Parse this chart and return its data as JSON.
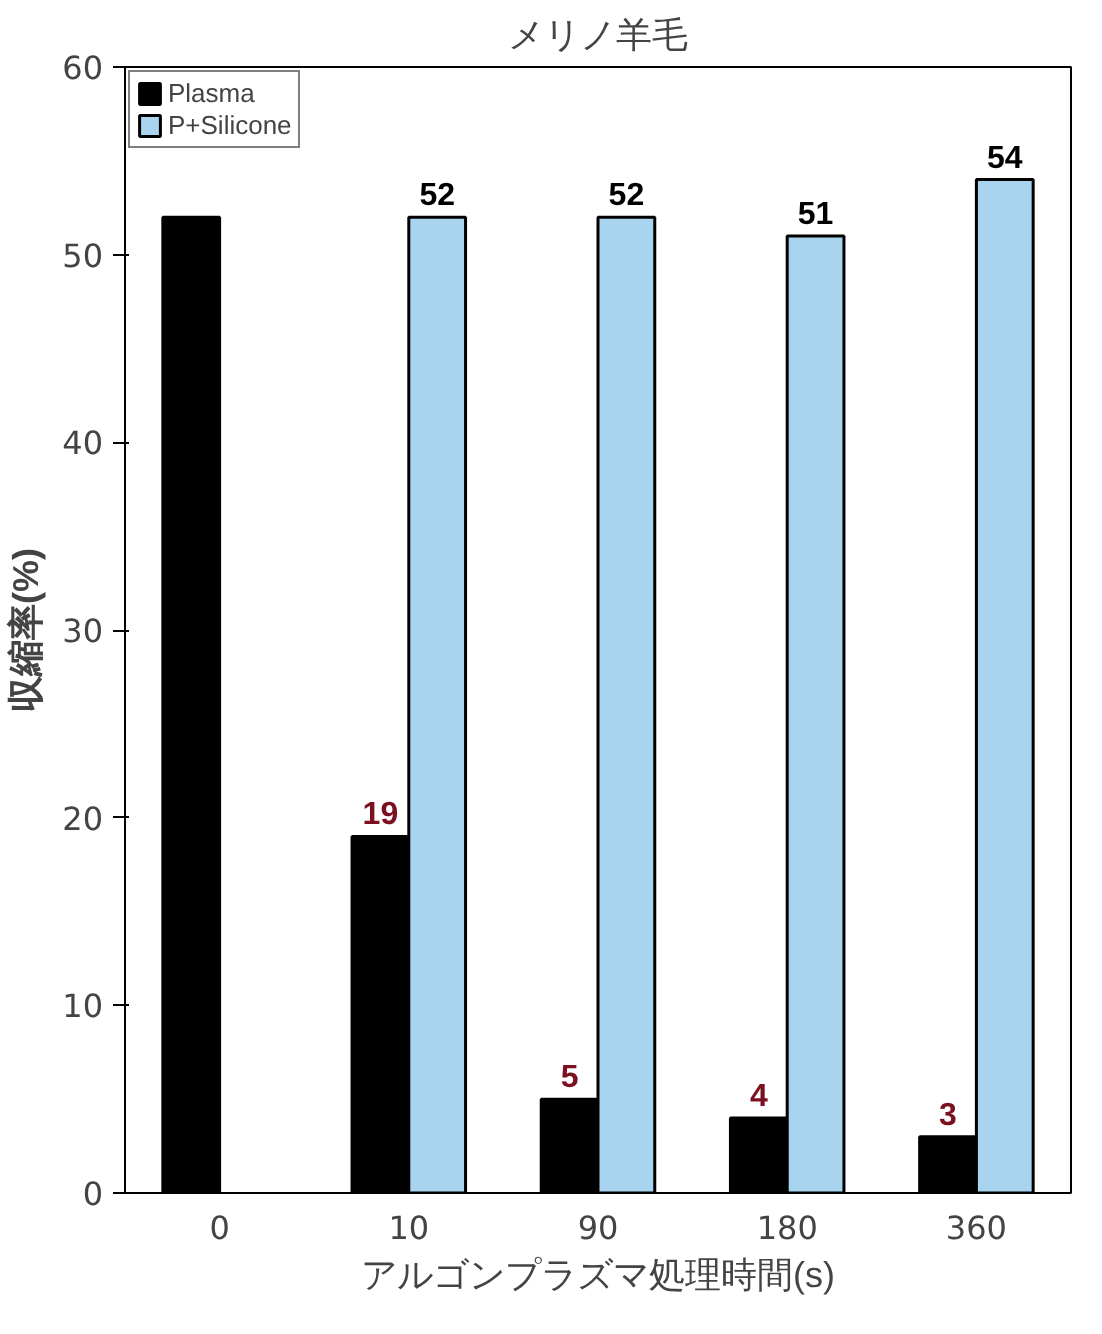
{
  "chart_data": {
    "type": "bar",
    "title": "メリノ羊毛",
    "xlabel": "アルゴンプラズマ処理時間(s)",
    "ylabel": "収縮率(%)",
    "categories": [
      "0",
      "10",
      "90",
      "180",
      "360"
    ],
    "series": [
      {
        "name": "Plasma",
        "color": "#000000",
        "values": [
          52,
          19,
          5,
          4,
          3
        ],
        "value_labels": [
          null,
          "19",
          "5",
          "4",
          "3"
        ]
      },
      {
        "name": "P+Silicone",
        "color": "#a9d4ef",
        "values": [
          null,
          52,
          52,
          51,
          54
        ],
        "value_labels": [
          null,
          "52",
          "52",
          "51",
          "54"
        ]
      }
    ],
    "ylim": [
      0,
      60
    ],
    "yticks": [
      0,
      10,
      20,
      30,
      40,
      50,
      60
    ],
    "grid": false,
    "legend": "top left"
  }
}
